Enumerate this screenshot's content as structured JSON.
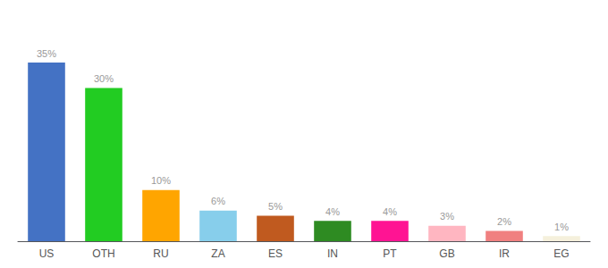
{
  "chart_data": {
    "type": "bar",
    "categories": [
      "US",
      "OTH",
      "RU",
      "ZA",
      "ES",
      "IN",
      "PT",
      "GB",
      "IR",
      "EG"
    ],
    "values": [
      35,
      30,
      10,
      6,
      5,
      4,
      4,
      3,
      2,
      1
    ],
    "value_labels": [
      "35%",
      "30%",
      "10%",
      "6%",
      "5%",
      "4%",
      "4%",
      "3%",
      "2%",
      "1%"
    ],
    "colors": [
      "#4472C4",
      "#22CC22",
      "#FFA500",
      "#87CEEB",
      "#C05A1F",
      "#2E8B22",
      "#FF1493",
      "#FFB6C1",
      "#F08080",
      "#F5F0DC"
    ],
    "data_labels": true,
    "ylim": [
      0,
      42
    ],
    "tick_labels": "x",
    "grid": false
  }
}
